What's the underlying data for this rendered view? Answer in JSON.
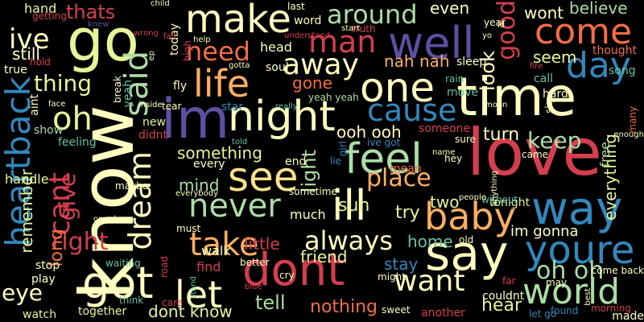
{
  "palette": {
    "red": "#d53e4f",
    "crimson": "#9e0142",
    "orange": "#f46d43",
    "lightorange": "#fdae61",
    "yellow": "#fee08b",
    "cream": "#ffffbf",
    "lightgreen": "#e6f598",
    "green": "#abdda4",
    "teal": "#66c2a5",
    "blue": "#3288bd",
    "indigo": "#5e4fa2"
  },
  "words": [
    {
      "text": "love",
      "color": "red"
    },
    {
      "text": "know",
      "color": "cream"
    },
    {
      "text": "im",
      "color": "indigo"
    },
    {
      "text": "time",
      "color": "cream"
    },
    {
      "text": "go",
      "color": "lightgreen"
    },
    {
      "text": "dont",
      "color": "red"
    },
    {
      "text": "well",
      "color": "indigo"
    },
    {
      "text": "say",
      "color": "cream"
    },
    {
      "text": "feel",
      "color": "green"
    },
    {
      "text": "heartback",
      "color": "blue"
    },
    {
      "text": "one",
      "color": "cream"
    },
    {
      "text": "way",
      "color": "blue"
    },
    {
      "text": "got",
      "color": "cream"
    },
    {
      "text": "night",
      "color": "cream"
    },
    {
      "text": "make",
      "color": "cream"
    },
    {
      "text": "let",
      "color": "cream"
    },
    {
      "text": "see",
      "color": "yellow"
    },
    {
      "text": "life",
      "color": "lightorange"
    },
    {
      "text": "ill",
      "color": "cream"
    },
    {
      "text": "youre",
      "color": "blue"
    },
    {
      "text": "cant",
      "color": "red"
    },
    {
      "text": "baby",
      "color": "lightorange"
    },
    {
      "text": "said",
      "color": "green"
    },
    {
      "text": "day",
      "color": "blue"
    },
    {
      "text": "world",
      "color": "green"
    },
    {
      "text": "take",
      "color": "lightorange"
    },
    {
      "text": "come",
      "color": "orange"
    },
    {
      "text": "never",
      "color": "green"
    },
    {
      "text": "dream",
      "color": "cream"
    },
    {
      "text": "man",
      "color": "red"
    },
    {
      "text": "cause",
      "color": "blue"
    },
    {
      "text": "oh",
      "color": "lightgreen"
    },
    {
      "text": "want",
      "color": "cream"
    },
    {
      "text": "good",
      "color": "red"
    },
    {
      "text": "away",
      "color": "cream"
    },
    {
      "text": "need",
      "color": "orange"
    },
    {
      "text": "around",
      "color": "green"
    },
    {
      "text": "right",
      "color": "red"
    },
    {
      "text": "always",
      "color": "cream"
    },
    {
      "text": "give",
      "color": "red"
    },
    {
      "text": "oh oh",
      "color": "green"
    },
    {
      "text": "keep",
      "color": "green"
    },
    {
      "text": "thing",
      "color": "lightgreen"
    },
    {
      "text": "ive",
      "color": "cream"
    },
    {
      "text": "place",
      "color": "lightorange"
    },
    {
      "text": "look",
      "color": "cream"
    },
    {
      "text": "light",
      "color": "green"
    },
    {
      "text": "tell",
      "color": "green"
    },
    {
      "text": "little",
      "color": "red"
    },
    {
      "text": "eye",
      "color": "cream"
    },
    {
      "text": "thats",
      "color": "red"
    },
    {
      "text": "head",
      "color": "cream"
    },
    {
      "text": "seem",
      "color": "lightgreen"
    },
    {
      "text": "nah nah",
      "color": "lightorange"
    },
    {
      "text": "ooh ooh",
      "color": "cream"
    },
    {
      "text": "turn",
      "color": "cream"
    },
    {
      "text": "try",
      "color": "lightgreen"
    },
    {
      "text": "long",
      "color": "orange"
    },
    {
      "text": "nothing",
      "color": "orange"
    },
    {
      "text": "hear",
      "color": "lightgreen"
    },
    {
      "text": "wont",
      "color": "cream"
    },
    {
      "text": "believe",
      "color": "green"
    },
    {
      "text": "even",
      "color": "cream"
    },
    {
      "text": "still",
      "color": "cream"
    },
    {
      "text": "gone",
      "color": "orange"
    },
    {
      "text": "mind",
      "color": "green"
    },
    {
      "text": "something",
      "color": "lightgreen"
    },
    {
      "text": "home",
      "color": "teal"
    },
    {
      "text": "stay",
      "color": "blue"
    },
    {
      "text": "friend",
      "color": "lightgreen"
    },
    {
      "text": "remember",
      "color": "lightgreen"
    },
    {
      "text": "everything",
      "color": "lightgreen"
    },
    {
      "text": "sun",
      "color": "lightgreen"
    },
    {
      "text": "dont know",
      "color": "lightgreen"
    },
    {
      "text": "im gonna",
      "color": "cream"
    },
    {
      "text": "show",
      "color": "green"
    },
    {
      "text": "two",
      "color": "lightgreen"
    },
    {
      "text": "much",
      "color": "cream"
    },
    {
      "text": "walk",
      "color": "cream"
    },
    {
      "text": "handle",
      "color": "lightgreen"
    },
    {
      "text": "tonight",
      "color": "lightgreen"
    },
    {
      "text": "feeling",
      "color": "teal"
    },
    {
      "text": "free",
      "color": "green"
    },
    {
      "text": "hand",
      "color": "lightgreen"
    },
    {
      "text": "together",
      "color": "lightgreen"
    },
    {
      "text": "watch",
      "color": "lightgreen"
    },
    {
      "text": "stop",
      "color": "cream"
    },
    {
      "text": "play",
      "color": "cream"
    },
    {
      "text": "find",
      "color": "red"
    },
    {
      "text": "move",
      "color": "teal"
    },
    {
      "text": "end",
      "color": "cream"
    },
    {
      "text": "every",
      "color": "cream"
    },
    {
      "text": "sleep",
      "color": "cream"
    },
    {
      "text": "hard",
      "color": "cream"
    },
    {
      "text": "call",
      "color": "teal"
    },
    {
      "text": "song",
      "color": "teal"
    },
    {
      "text": "made",
      "color": "cream"
    },
    {
      "text": "word",
      "color": "cream"
    },
    {
      "text": "soul",
      "color": "cream"
    },
    {
      "text": "yeah yeah",
      "color": "green"
    },
    {
      "text": "fly",
      "color": "cream"
    },
    {
      "text": "star",
      "color": "blue"
    },
    {
      "text": "lie",
      "color": "blue"
    },
    {
      "text": "girl",
      "color": "blue"
    },
    {
      "text": "ive got",
      "color": "blue"
    },
    {
      "text": "old",
      "color": "cream"
    },
    {
      "text": "might",
      "color": "cream"
    },
    {
      "text": "cry",
      "color": "cream"
    },
    {
      "text": "new",
      "color": "lightgreen"
    },
    {
      "text": "didnt",
      "color": "red"
    },
    {
      "text": "true",
      "color": "cream"
    },
    {
      "text": "aint",
      "color": "cream"
    },
    {
      "text": "yeah",
      "color": "teal"
    },
    {
      "text": "thought",
      "color": "orange"
    },
    {
      "text": "someone",
      "color": "red"
    },
    {
      "text": "rain",
      "color": "teal"
    },
    {
      "text": "mean",
      "color": "orange"
    },
    {
      "text": "another",
      "color": "red"
    },
    {
      "text": "couldnt",
      "color": "cream"
    },
    {
      "text": "better",
      "color": "cream"
    },
    {
      "text": "break",
      "color": "cream"
    },
    {
      "text": "tear",
      "color": "cream"
    },
    {
      "text": "sometime",
      "color": "cream"
    },
    {
      "text": "maybe",
      "color": "cream"
    },
    {
      "text": "waiting",
      "color": "teal"
    },
    {
      "text": "must",
      "color": "cream"
    },
    {
      "text": "think",
      "color": "teal"
    },
    {
      "text": "care",
      "color": "red"
    },
    {
      "text": "road",
      "color": "red"
    },
    {
      "text": "sky",
      "color": "cream"
    },
    {
      "text": "far",
      "color": "red"
    },
    {
      "text": "may",
      "color": "cream"
    },
    {
      "text": "come back",
      "color": "cream"
    },
    {
      "text": "let go",
      "color": "blue"
    },
    {
      "text": "found",
      "color": "blue"
    },
    {
      "text": "came",
      "color": "cream"
    },
    {
      "text": "without",
      "color": "teal"
    },
    {
      "text": "people",
      "color": "cream"
    },
    {
      "text": "anything",
      "color": "cream"
    },
    {
      "text": "enough",
      "color": "cream"
    },
    {
      "text": "many",
      "color": "orange"
    },
    {
      "text": "morning",
      "color": "red"
    },
    {
      "text": "best",
      "color": "cream"
    },
    {
      "text": "moon",
      "color": "cream"
    },
    {
      "text": "name",
      "color": "cream"
    },
    {
      "text": "hey",
      "color": "cream"
    },
    {
      "text": "sure",
      "color": "cream"
    },
    {
      "text": "truth",
      "color": "red"
    },
    {
      "text": "start",
      "color": "cream"
    },
    {
      "text": "last",
      "color": "cream"
    },
    {
      "text": "year",
      "color": "cream"
    },
    {
      "text": "id",
      "color": "cream"
    },
    {
      "text": "yo",
      "color": "cream"
    },
    {
      "text": "fire",
      "color": "red"
    },
    {
      "text": "getting",
      "color": "red"
    },
    {
      "text": "hold",
      "color": "red"
    },
    {
      "text": "knew",
      "color": "indigo"
    },
    {
      "text": "child",
      "color": "cream"
    },
    {
      "text": "today",
      "color": "cream"
    },
    {
      "text": "high",
      "color": "red"
    },
    {
      "text": "fall",
      "color": "red"
    },
    {
      "text": "help",
      "color": "cream"
    },
    {
      "text": "understand",
      "color": "red"
    },
    {
      "text": "gotta",
      "color": "cream"
    },
    {
      "text": "ep",
      "color": "cream"
    },
    {
      "text": "inside",
      "color": "cream"
    },
    {
      "text": "really",
      "color": "teal"
    },
    {
      "text": "face",
      "color": "cream"
    },
    {
      "text": "told",
      "color": "teal"
    },
    {
      "text": "everybody",
      "color": "cream"
    },
    {
      "text": "one day",
      "color": "cream"
    },
    {
      "text": "blue",
      "color": "red"
    },
    {
      "text": "stand",
      "color": "teal"
    },
    {
      "text": "sweet",
      "color": "cream"
    },
    {
      "text": "wrong",
      "color": "red"
    },
    {
      "text": "sea",
      "color": "cream"
    }
  ]
}
